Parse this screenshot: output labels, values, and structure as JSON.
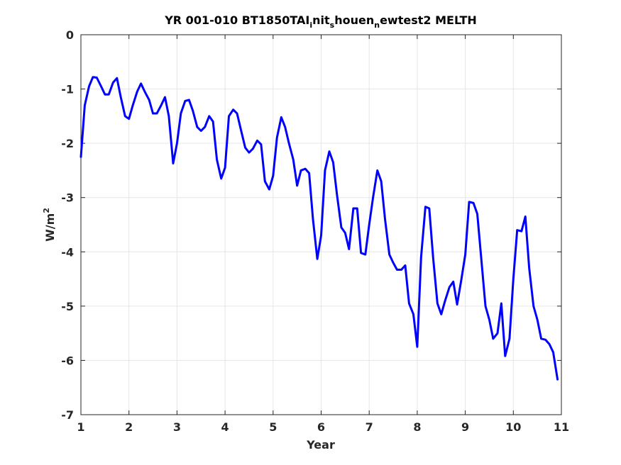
{
  "chart_data": {
    "type": "line",
    "title_parts": {
      "main": "YR 001-010 BT1850TAI",
      "sub1": "i",
      "mid1": "nit",
      "sub2": "s",
      "mid2": "houen",
      "sub3": "n",
      "end": "ewtest2 MELTH"
    },
    "xlabel": "Year",
    "ylabel_base": "W/m",
    "ylabel_sup": "2",
    "xlim": [
      1,
      11
    ],
    "ylim": [
      -7,
      0
    ],
    "xticks": [
      "1",
      "2",
      "3",
      "4",
      "5",
      "6",
      "7",
      "8",
      "9",
      "10",
      "11"
    ],
    "yticks": [
      "0",
      "-1",
      "-2",
      "-3",
      "-4",
      "-5",
      "-6",
      "-7"
    ],
    "grid": true,
    "line_color": "#0000ff",
    "series": [
      {
        "x": [
          1.0,
          1.08,
          1.17,
          1.25,
          1.33,
          1.42,
          1.5,
          1.58,
          1.67,
          1.75,
          1.83,
          1.92,
          2.0,
          2.08,
          2.17,
          2.25,
          2.33,
          2.42,
          2.5,
          2.58,
          2.67,
          2.75,
          2.83,
          2.92,
          3.0,
          3.08,
          3.17,
          3.25,
          3.33,
          3.42,
          3.5,
          3.58,
          3.67,
          3.75,
          3.83,
          3.92,
          4.0,
          4.08,
          4.17,
          4.25,
          4.33,
          4.42,
          4.5,
          4.58,
          4.67,
          4.75,
          4.83,
          4.92,
          5.0,
          5.08,
          5.17,
          5.25,
          5.33,
          5.42,
          5.5,
          5.58,
          5.67,
          5.75,
          5.83,
          5.92,
          6.0,
          6.08,
          6.17,
          6.25,
          6.33,
          6.42,
          6.5,
          6.58,
          6.67,
          6.75,
          6.83,
          6.92,
          7.0,
          7.08,
          7.17,
          7.25,
          7.33,
          7.42,
          7.5,
          7.58,
          7.67,
          7.75,
          7.83,
          7.92,
          8.0,
          8.08,
          8.17,
          8.25,
          8.33,
          8.42,
          8.5,
          8.58,
          8.67,
          8.75,
          8.83,
          8.92,
          9.0,
          9.08,
          9.17,
          9.25,
          9.33,
          9.42,
          9.5,
          9.58,
          9.67,
          9.75,
          9.83,
          9.92,
          10.0,
          10.08,
          10.17,
          10.25,
          10.33,
          10.42,
          10.5,
          10.58,
          10.67,
          10.75,
          10.83,
          10.92
        ],
        "y": [
          -2.25,
          -1.3,
          -0.95,
          -0.78,
          -0.79,
          -0.95,
          -1.1,
          -1.1,
          -0.88,
          -0.8,
          -1.15,
          -1.5,
          -1.55,
          -1.3,
          -1.05,
          -0.9,
          -1.05,
          -1.2,
          -1.45,
          -1.45,
          -1.3,
          -1.15,
          -1.5,
          -2.37,
          -2.0,
          -1.45,
          -1.22,
          -1.2,
          -1.4,
          -1.7,
          -1.77,
          -1.7,
          -1.5,
          -1.6,
          -2.3,
          -2.65,
          -2.45,
          -1.5,
          -1.38,
          -1.45,
          -1.75,
          -2.08,
          -2.17,
          -2.1,
          -1.95,
          -2.02,
          -2.7,
          -2.85,
          -2.6,
          -1.9,
          -1.52,
          -1.7,
          -2.0,
          -2.3,
          -2.78,
          -2.5,
          -2.47,
          -2.55,
          -3.4,
          -4.13,
          -3.7,
          -2.5,
          -2.15,
          -2.35,
          -2.95,
          -3.55,
          -3.65,
          -3.95,
          -3.2,
          -3.2,
          -4.02,
          -4.05,
          -3.5,
          -3.0,
          -2.5,
          -2.7,
          -3.4,
          -4.05,
          -4.2,
          -4.33,
          -4.33,
          -4.25,
          -4.95,
          -5.15,
          -5.75,
          -4.1,
          -3.17,
          -3.2,
          -4.1,
          -4.95,
          -5.15,
          -4.9,
          -4.65,
          -4.55,
          -4.97,
          -4.5,
          -4.05,
          -3.08,
          -3.1,
          -3.3,
          -4.1,
          -5.0,
          -5.25,
          -5.6,
          -5.5,
          -4.95,
          -5.92,
          -5.6,
          -4.5,
          -3.6,
          -3.62,
          -3.35,
          -4.3,
          -5.0,
          -5.25,
          -5.6,
          -5.62,
          -5.7,
          -5.85,
          -6.35
        ]
      }
    ]
  }
}
